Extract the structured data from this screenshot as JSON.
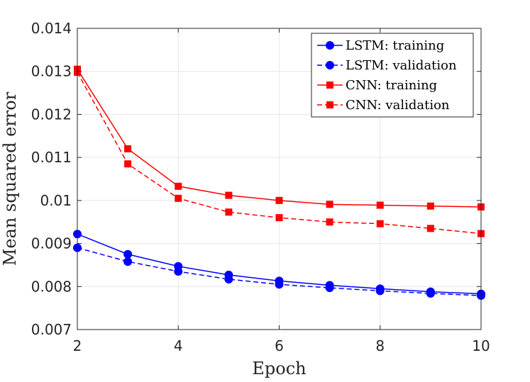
{
  "chart_data": {
    "type": "line",
    "title": "",
    "xlabel": "Epoch",
    "ylabel": "Mean squared error",
    "xlim": [
      2,
      10
    ],
    "ylim": [
      0.007,
      0.014
    ],
    "xticks": [
      2,
      4,
      6,
      8,
      10
    ],
    "xtick_labels": [
      "2",
      "4",
      "6",
      "8",
      "10"
    ],
    "yticks": [
      0.007,
      0.008,
      0.009,
      0.01,
      0.011,
      0.012,
      0.013,
      0.014
    ],
    "ytick_labels": [
      "0.007",
      "0.008",
      "0.009",
      "0.01",
      "0.011",
      "0.012",
      "0.013",
      "0.014"
    ],
    "grid": true,
    "legend_position": "top-right",
    "x": [
      2,
      3,
      4,
      5,
      6,
      7,
      8,
      9,
      10
    ],
    "series": [
      {
        "name": "LSTM: training",
        "color": "#0000ff",
        "line": "solid",
        "marker": "circle",
        "values": [
          0.00922,
          0.00875,
          0.00847,
          0.00827,
          0.00813,
          0.00803,
          0.00795,
          0.00788,
          0.00783
        ]
      },
      {
        "name": "LSTM: validation",
        "color": "#0000ff",
        "line": "dashed",
        "marker": "circle",
        "values": [
          0.0089,
          0.00858,
          0.00835,
          0.00817,
          0.00805,
          0.00797,
          0.0079,
          0.00784,
          0.00779
        ]
      },
      {
        "name": "CNN: training",
        "color": "#ff0000",
        "line": "solid",
        "marker": "square",
        "values": [
          0.01305,
          0.0112,
          0.01033,
          0.01012,
          0.01,
          0.00991,
          0.00989,
          0.00987,
          0.00985
        ]
      },
      {
        "name": "CNN: validation",
        "color": "#ff0000",
        "line": "dashed",
        "marker": "square",
        "values": [
          0.01298,
          0.01085,
          0.01005,
          0.00973,
          0.0096,
          0.0095,
          0.00946,
          0.00935,
          0.00923
        ]
      }
    ]
  }
}
